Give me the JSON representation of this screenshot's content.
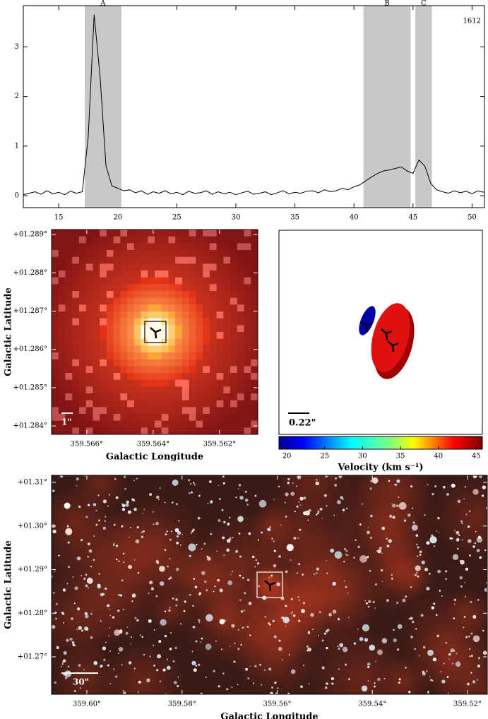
{
  "chart_data": [
    {
      "type": "line",
      "annotation": "1612",
      "x": [
        12,
        12.5,
        13,
        13.5,
        14,
        14.5,
        15,
        15.5,
        16,
        16.5,
        17,
        17.5,
        18,
        18.5,
        19,
        19.5,
        20,
        20.5,
        21,
        21.5,
        22,
        22.5,
        23,
        23.5,
        24,
        24.5,
        25,
        25.5,
        26,
        26.5,
        27,
        27.5,
        28,
        28.5,
        29,
        29.5,
        30,
        30.5,
        31,
        31.5,
        32,
        32.5,
        33,
        33.5,
        34,
        34.5,
        35,
        35.5,
        36,
        36.5,
        37,
        37.5,
        38,
        38.5,
        39,
        39.5,
        40,
        40.5,
        41,
        41.5,
        42,
        42.5,
        43,
        43.5,
        44,
        44.5,
        45,
        45.5,
        46,
        46.5,
        47,
        47.5,
        48,
        48.5,
        49,
        49.5,
        50,
        50.5,
        51
      ],
      "values": [
        0.02,
        0.05,
        0.08,
        0.03,
        0.1,
        0.04,
        0.07,
        0.02,
        0.09,
        0.05,
        0.08,
        1.2,
        3.65,
        2.4,
        0.6,
        0.2,
        0.15,
        0.1,
        0.12,
        0.06,
        0.1,
        0.03,
        0.08,
        0.05,
        0.1,
        0.04,
        0.07,
        0.02,
        0.09,
        0.05,
        0.06,
        0.1,
        0.03,
        0.08,
        0.04,
        0.07,
        0.02,
        0.06,
        0.09,
        0.03,
        0.05,
        0.08,
        0.02,
        0.06,
        0.1,
        0.04,
        0.07,
        0.05,
        0.09,
        0.1,
        0.06,
        0.12,
        0.08,
        0.1,
        0.15,
        0.12,
        0.18,
        0.22,
        0.3,
        0.38,
        0.45,
        0.5,
        0.52,
        0.55,
        0.58,
        0.5,
        0.45,
        0.72,
        0.6,
        0.25,
        0.12,
        0.08,
        0.05,
        0.1,
        0.06,
        0.09,
        0.04,
        0.1,
        0.07
      ],
      "color": "#000000",
      "xlim": [
        12,
        51.05
      ],
      "xticks": [
        15,
        20,
        25,
        30,
        35,
        40,
        45,
        50
      ],
      "ylim": [
        -0.24,
        3.83
      ],
      "yticks": [
        0,
        1,
        2,
        3
      ],
      "regions": [
        {
          "label": "A",
          "range": [
            17.2,
            20.3
          ]
        },
        {
          "label": "B",
          "range": [
            40.8,
            44.8
          ]
        },
        {
          "label": "C",
          "range": [
            45.2,
            46.6
          ]
        }
      ],
      "region_color": "#c8c8c8"
    },
    {
      "type": "image",
      "xlabel": "Galactic Longitude",
      "ylabel": "Galactic Latitude",
      "xlim": [
        359.56706,
        359.56085
      ],
      "xticks": [
        {
          "value": 359.566,
          "label": "359.566°"
        },
        {
          "value": 359.564,
          "label": "359.564°"
        },
        {
          "value": 359.562,
          "label": "359.562°"
        }
      ],
      "ylim": [
        1.28378,
        1.28913
      ],
      "yticks": [
        {
          "value": 1.284,
          "label": "+01.284°"
        },
        {
          "value": 1.285,
          "label": "+01.285°"
        },
        {
          "value": 1.286,
          "label": "+01.286°"
        },
        {
          "value": 1.287,
          "label": "+01.287°"
        },
        {
          "value": 1.288,
          "label": "+01.288°"
        },
        {
          "value": 1.289,
          "label": "+01.289°"
        }
      ],
      "scale_bar": "1\""
    },
    {
      "type": "colorbar",
      "scale_bar": "0.22\"",
      "colorbar_label": "Velocity (km s⁻¹)",
      "clim": [
        18.97,
        45.8
      ],
      "cticks": [
        20,
        25,
        30,
        35,
        40,
        45
      ]
    },
    {
      "type": "image",
      "xlabel": "Galactic Longitude",
      "ylabel": "Galactic Latitude",
      "xlim": [
        359.60742,
        359.51584
      ],
      "xticks": [
        {
          "value": 359.6,
          "label": "359.60°"
        },
        {
          "value": 359.58,
          "label": "359.58°"
        },
        {
          "value": 359.56,
          "label": "359.56°"
        },
        {
          "value": 359.54,
          "label": "359.54°"
        },
        {
          "value": 359.52,
          "label": "359.52°"
        }
      ],
      "ylim": [
        1.26142,
        1.31162
      ],
      "yticks": [
        {
          "value": 1.27,
          "label": "+01.27°"
        },
        {
          "value": 1.28,
          "label": "+01.28°"
        },
        {
          "value": 1.29,
          "label": "+01.29°"
        },
        {
          "value": 1.3,
          "label": "+01.30°"
        },
        {
          "value": 1.31,
          "label": "+01.31°"
        }
      ],
      "scale_bar": "30\""
    }
  ]
}
